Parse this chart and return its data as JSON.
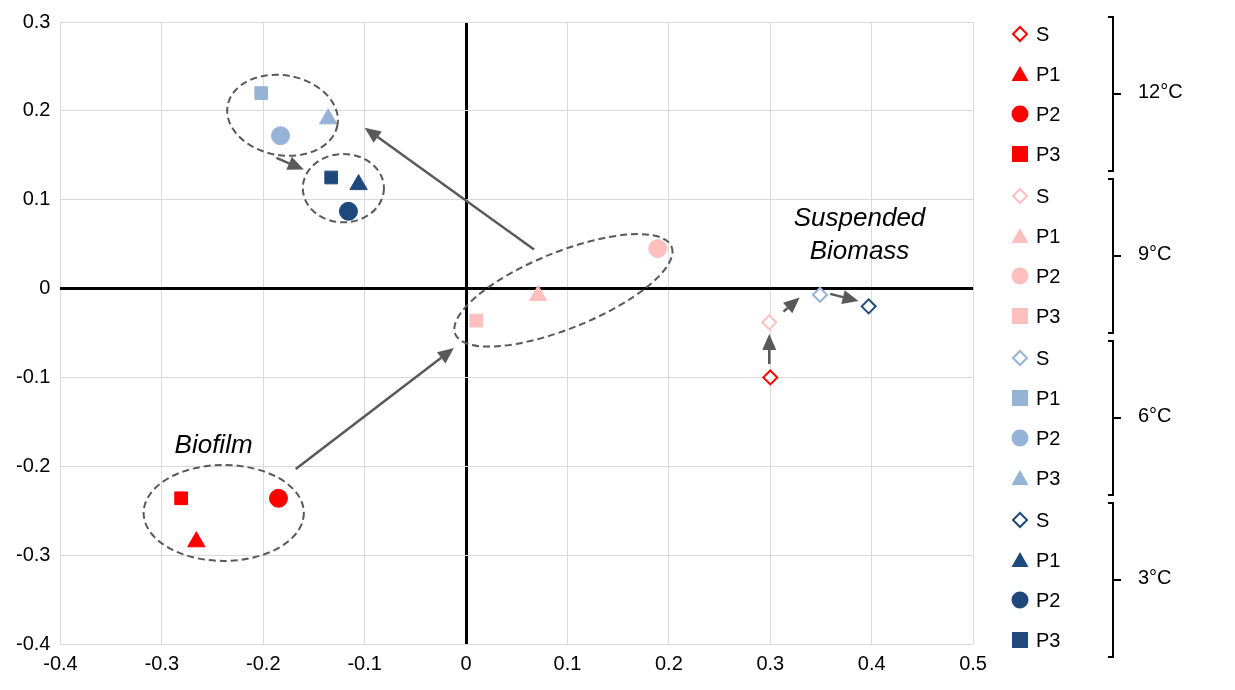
{
  "chart_data": {
    "type": "scatter",
    "xlim": [
      -0.4,
      0.5
    ],
    "xticks": [
      -0.4,
      -0.3,
      -0.2,
      -0.1,
      0,
      0.1,
      0.2,
      0.3,
      0.4,
      0.5
    ],
    "ylim": [
      -0.4,
      0.3
    ],
    "yticks": [
      -0.4,
      -0.3,
      -0.2,
      -0.1,
      0,
      0.1,
      0.2,
      0.3
    ],
    "grid": true,
    "legend": "right",
    "series": [
      {
        "name": "S",
        "color": "#ff0000",
        "marker": "diamond",
        "x": [
          0.3
        ],
        "values": [
          -0.1
        ]
      },
      {
        "name": "P1",
        "color": "#ff0000",
        "marker": "triangle",
        "x": [
          -0.266
        ],
        "values": [
          -0.285
        ]
      },
      {
        "name": "P2",
        "color": "#ff0000",
        "marker": "circle",
        "x": [
          -0.185
        ],
        "values": [
          -0.236
        ]
      },
      {
        "name": "P3",
        "color": "#ff0000",
        "marker": "square",
        "x": [
          -0.281
        ],
        "values": [
          -0.236
        ]
      },
      {
        "name": "S",
        "color": "#ffbfbf",
        "marker": "diamond",
        "x": [
          0.299
        ],
        "values": [
          -0.038
        ]
      },
      {
        "name": "P1",
        "color": "#ffbfbf",
        "marker": "triangle",
        "x": [
          0.071
        ],
        "values": [
          -0.008
        ]
      },
      {
        "name": "P2",
        "color": "#ffbfbf",
        "marker": "circle",
        "x": [
          0.189
        ],
        "values": [
          0.045
        ]
      },
      {
        "name": "P3",
        "color": "#ffbfbf",
        "marker": "square",
        "x": [
          0.01
        ],
        "values": [
          -0.036
        ]
      },
      {
        "name": "S",
        "color": "#95b3d7",
        "marker": "diamond",
        "x": [
          0.349
        ],
        "values": [
          -0.007
        ]
      },
      {
        "name": "P1",
        "color": "#95b3d7",
        "marker": "square",
        "x": [
          -0.202
        ],
        "values": [
          0.22
        ]
      },
      {
        "name": "P2",
        "color": "#95b3d7",
        "marker": "circle",
        "x": [
          -0.183
        ],
        "values": [
          0.172
        ]
      },
      {
        "name": "P3",
        "color": "#95b3d7",
        "marker": "triangle",
        "x": [
          -0.136
        ],
        "values": [
          0.191
        ]
      },
      {
        "name": "S",
        "color": "#1f497d",
        "marker": "diamond",
        "x": [
          0.397
        ],
        "values": [
          -0.02
        ]
      },
      {
        "name": "P1",
        "color": "#1f497d",
        "marker": "triangle",
        "x": [
          -0.106
        ],
        "values": [
          0.117
        ]
      },
      {
        "name": "P2",
        "color": "#1f497d",
        "marker": "circle",
        "x": [
          -0.116
        ],
        "values": [
          0.087
        ]
      },
      {
        "name": "P3",
        "color": "#1f497d",
        "marker": "square",
        "x": [
          -0.133
        ],
        "values": [
          0.125
        ]
      }
    ],
    "annotations": [
      "12°C",
      "9°C",
      "6°C",
      "3°C",
      "Biofilm",
      "Suspended Biomass"
    ]
  }
}
